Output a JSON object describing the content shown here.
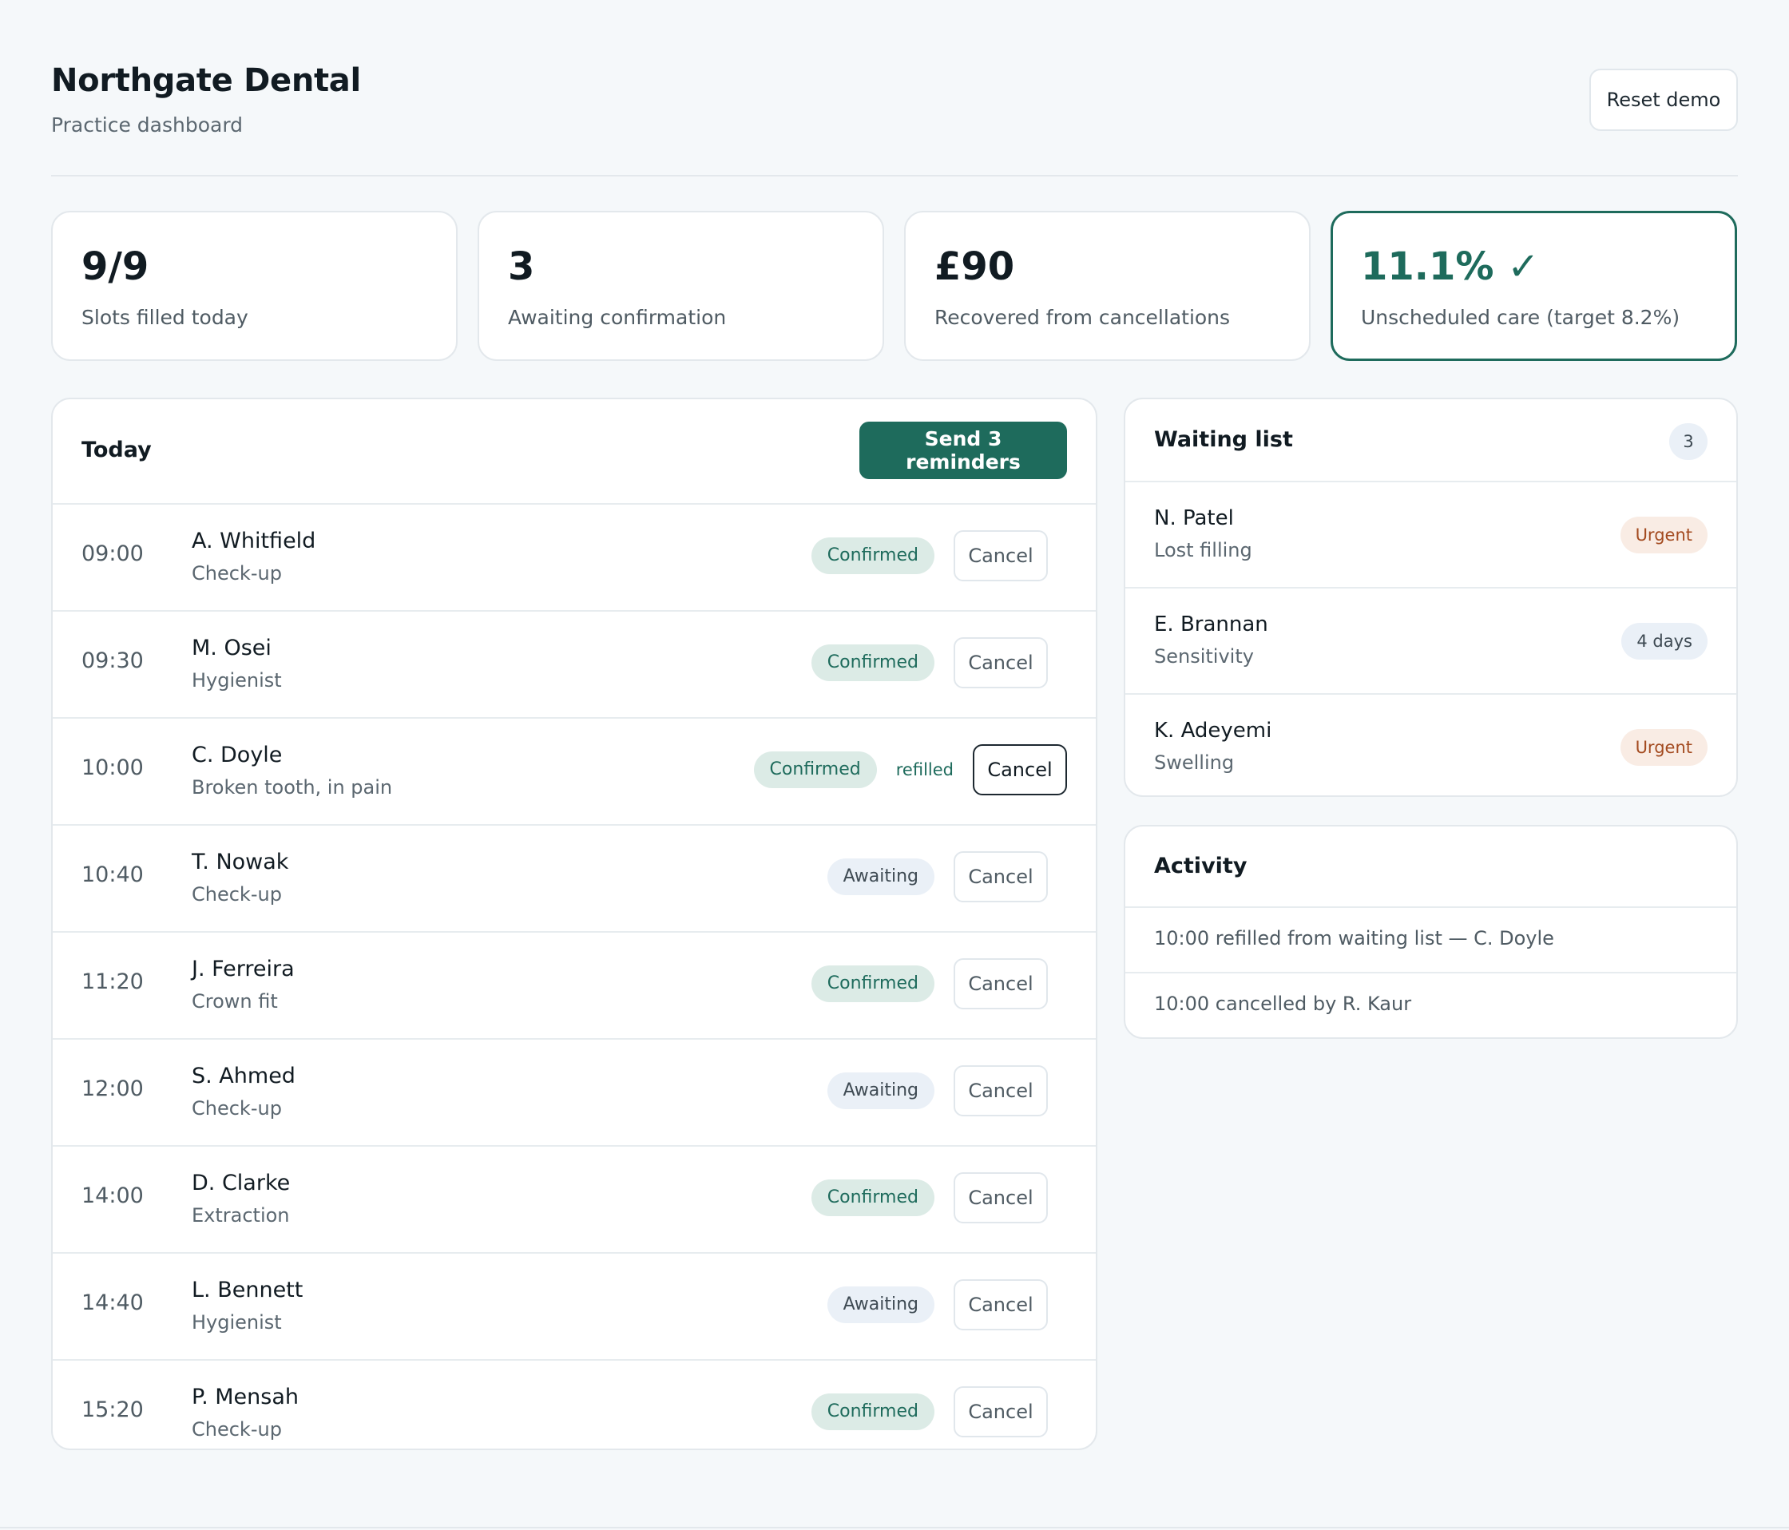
{
  "header": {
    "title": "Northgate Dental",
    "subtitle": "Practice dashboard",
    "reset_label": "Reset demo"
  },
  "stats": [
    {
      "value": "9/9",
      "label": "Slots filled today"
    },
    {
      "value": "3",
      "label": "Awaiting confirmation"
    },
    {
      "value": "£90",
      "label": "Recovered from cancellations"
    },
    {
      "value": "11.1% ✓",
      "label": "Unscheduled care (target 8.2%)"
    }
  ],
  "today": {
    "title": "Today",
    "send_label": "Send 3 reminders",
    "cancel_label": "Cancel",
    "refilled_label": "refilled",
    "rows": [
      {
        "time": "09:00",
        "name": "A. Whitfield",
        "desc": "Check-up",
        "status": "Confirmed"
      },
      {
        "time": "09:30",
        "name": "M. Osei",
        "desc": "Hygienist",
        "status": "Confirmed"
      },
      {
        "time": "10:00",
        "name": "C. Doyle",
        "desc": "Broken tooth, in pain",
        "status": "Confirmed"
      },
      {
        "time": "10:40",
        "name": "T. Nowak",
        "desc": "Check-up",
        "status": "Awaiting"
      },
      {
        "time": "11:20",
        "name": "J. Ferreira",
        "desc": "Crown fit",
        "status": "Confirmed"
      },
      {
        "time": "12:00",
        "name": "S. Ahmed",
        "desc": "Check-up",
        "status": "Awaiting"
      },
      {
        "time": "14:00",
        "name": "D. Clarke",
        "desc": "Extraction",
        "status": "Confirmed"
      },
      {
        "time": "14:40",
        "name": "L. Bennett",
        "desc": "Hygienist",
        "status": "Awaiting"
      },
      {
        "time": "15:20",
        "name": "P. Mensah",
        "desc": "Check-up",
        "status": "Confirmed"
      }
    ]
  },
  "waiting_list": {
    "title": "Waiting list",
    "count": "3",
    "items": [
      {
        "name": "N. Patel",
        "desc": "Lost filling",
        "badge": "Urgent"
      },
      {
        "name": "E. Brannan",
        "desc": "Sensitivity",
        "badge": "4 days"
      },
      {
        "name": "K. Adeyemi",
        "desc": "Swelling",
        "badge": "Urgent"
      }
    ]
  },
  "activity": {
    "title": "Activity",
    "items": [
      "10:00 refilled from waiting list — C. Doyle",
      "10:00 cancelled by R. Kaur"
    ]
  },
  "colors": {
    "accent": "#1e6b5c",
    "background": "#f5f8fa",
    "urgent": "#a34a1f"
  }
}
